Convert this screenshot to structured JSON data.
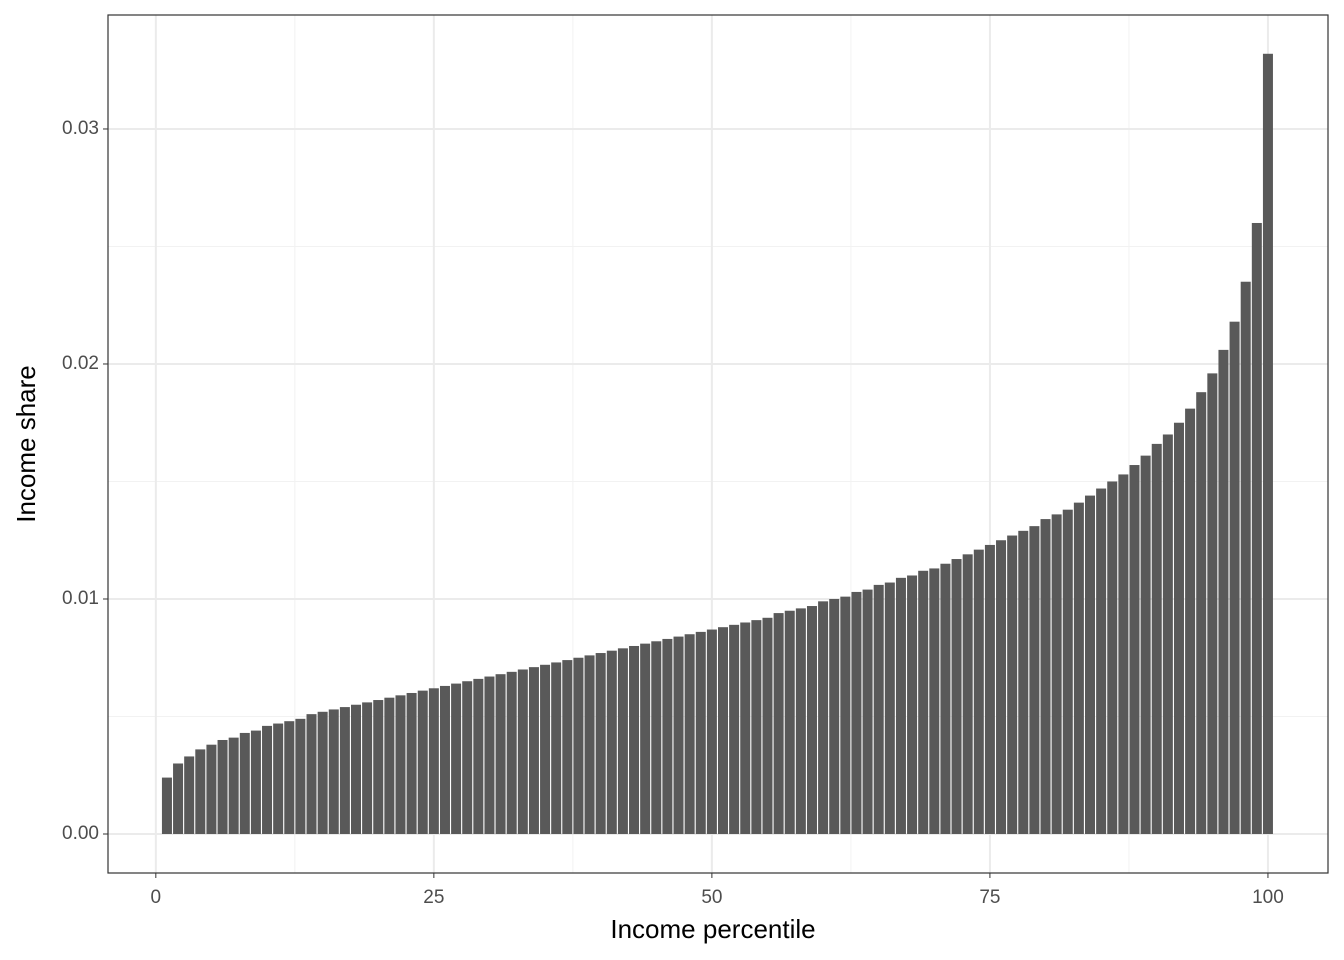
{
  "chart_data": {
    "type": "bar",
    "xlabel": "Income percentile",
    "ylabel": "Income share",
    "x": [
      1,
      2,
      3,
      4,
      5,
      6,
      7,
      8,
      9,
      10,
      11,
      12,
      13,
      14,
      15,
      16,
      17,
      18,
      19,
      20,
      21,
      22,
      23,
      24,
      25,
      26,
      27,
      28,
      29,
      30,
      31,
      32,
      33,
      34,
      35,
      36,
      37,
      38,
      39,
      40,
      41,
      42,
      43,
      44,
      45,
      46,
      47,
      48,
      49,
      50,
      51,
      52,
      53,
      54,
      55,
      56,
      57,
      58,
      59,
      60,
      61,
      62,
      63,
      64,
      65,
      66,
      67,
      68,
      69,
      70,
      71,
      72,
      73,
      74,
      75,
      76,
      77,
      78,
      79,
      80,
      81,
      82,
      83,
      84,
      85,
      86,
      87,
      88,
      89,
      90,
      91,
      92,
      93,
      94,
      95,
      96,
      97,
      98,
      99,
      100
    ],
    "values": [
      0.0024,
      0.003,
      0.0033,
      0.0036,
      0.0038,
      0.004,
      0.0041,
      0.0043,
      0.0044,
      0.0046,
      0.0047,
      0.0048,
      0.0049,
      0.0051,
      0.0052,
      0.0053,
      0.0054,
      0.0055,
      0.0056,
      0.0057,
      0.0058,
      0.0059,
      0.006,
      0.0061,
      0.0062,
      0.0063,
      0.0064,
      0.0065,
      0.0066,
      0.0067,
      0.0068,
      0.0069,
      0.007,
      0.0071,
      0.0072,
      0.0073,
      0.0074,
      0.0075,
      0.0076,
      0.0077,
      0.0078,
      0.0079,
      0.008,
      0.0081,
      0.0082,
      0.0083,
      0.0084,
      0.0085,
      0.0086,
      0.0087,
      0.0088,
      0.0089,
      0.009,
      0.0091,
      0.0092,
      0.0094,
      0.0095,
      0.0096,
      0.0097,
      0.0099,
      0.01,
      0.0101,
      0.0103,
      0.0104,
      0.0106,
      0.0107,
      0.0109,
      0.011,
      0.0112,
      0.0113,
      0.0115,
      0.0117,
      0.0119,
      0.0121,
      0.0123,
      0.0125,
      0.0127,
      0.0129,
      0.0131,
      0.0134,
      0.0136,
      0.0138,
      0.0141,
      0.0144,
      0.0147,
      0.015,
      0.0153,
      0.0157,
      0.0161,
      0.0166,
      0.017,
      0.0175,
      0.0181,
      0.0188,
      0.0196,
      0.0206,
      0.0218,
      0.0235,
      0.026,
      0.0332
    ],
    "color": "#595959",
    "bar_width": 0.9,
    "xlim": [
      -4.3,
      105.4
    ],
    "xticks": [
      0,
      25,
      50,
      75,
      100
    ],
    "xminor": [
      12.5,
      37.5,
      62.5,
      87.5
    ],
    "ylim": [
      -0.00166,
      0.03485
    ],
    "yticks": [
      {
        "value": 0,
        "label": "0.00"
      },
      0.01,
      0.02,
      0.03
    ],
    "yminor": [
      0.005,
      0.015,
      0.025
    ],
    "grid": true
  }
}
